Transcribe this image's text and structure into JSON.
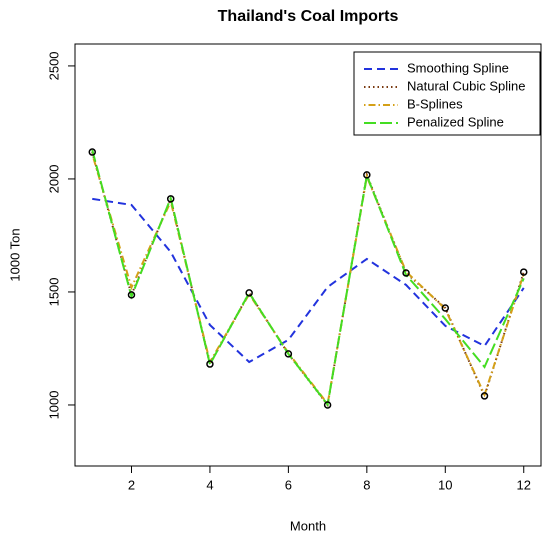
{
  "chart_data": {
    "type": "line",
    "title": "Thailand's Coal Imports",
    "x_label": "Month",
    "y_label": "1000 Ton",
    "x": [
      1,
      2,
      3,
      4,
      5,
      6,
      7,
      8,
      9,
      10,
      11,
      12
    ],
    "points": [
      2119,
      1487,
      1912,
      1181,
      1496,
      1226,
      1000,
      2018,
      1584,
      1429,
      1040,
      1588
    ],
    "series": [
      {
        "name": "Smoothing Spline",
        "color": "#2233dd",
        "linestyle": "dashed",
        "values": [
          1912,
          1885,
          1677,
          1354,
          1190,
          1288,
          1522,
          1646,
          1531,
          1350,
          1261,
          1518
        ]
      },
      {
        "name": "Natural Cubic Spline",
        "color": "#7a3a10",
        "linestyle": "dotted",
        "values": [
          2119,
          1487,
          1912,
          1181,
          1496,
          1226,
          1000,
          2018,
          1584,
          1429,
          1040,
          1588
        ]
      },
      {
        "name": "B-Splines",
        "color": "#d4a017",
        "linestyle": "dotdash",
        "values": [
          2110,
          1520,
          1900,
          1190,
          1490,
          1230,
          1005,
          2010,
          1590,
          1425,
          1045,
          1580
        ]
      },
      {
        "name": "Penalized Spline",
        "color": "#44dd22",
        "linestyle": "longdash",
        "values": [
          2128,
          1480,
          1915,
          1180,
          1496,
          1226,
          1002,
          2015,
          1575,
          1380,
          1168,
          1560
        ]
      }
    ],
    "xlim": [
      0.56,
      12.44
    ],
    "ylim": [
      730,
      2597
    ],
    "xticks": [
      2,
      4,
      6,
      8,
      10,
      12
    ],
    "yticks": [
      1000,
      1500,
      2000,
      2500
    ],
    "legend": "top-right",
    "grid": false
  }
}
